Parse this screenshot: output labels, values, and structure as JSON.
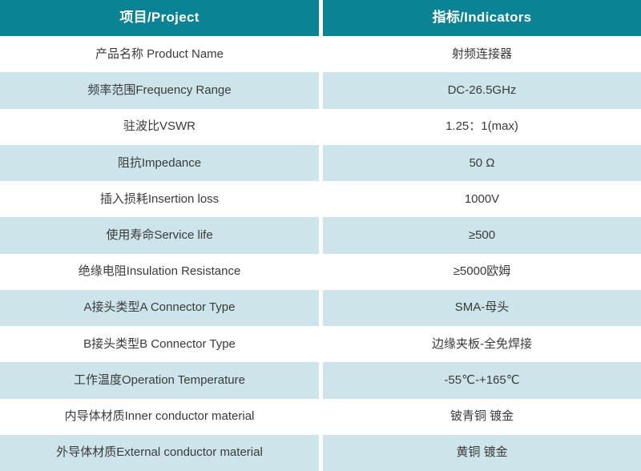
{
  "colors": {
    "header_bg": "#0A8494",
    "header_text": "#FFFFFF",
    "row_bg": "#FFFFFF",
    "row_alt_bg": "#CDE5EA",
    "body_text": "#3A3A3A"
  },
  "table": {
    "columns": [
      {
        "key": "project",
        "label": "项目/Project"
      },
      {
        "key": "indicator",
        "label": "指标/Indicators"
      }
    ],
    "rows": [
      {
        "project": "产品名称 Product Name",
        "indicator": "射频连接器"
      },
      {
        "project": "频率范围Frequency Range",
        "indicator": "DC-26.5GHz"
      },
      {
        "project": "驻波比VSWR",
        "indicator": "1.25：1(max)"
      },
      {
        "project": "阻抗Impedance",
        "indicator": "50 Ω"
      },
      {
        "project": "插入损耗Insertion loss",
        "indicator": "1000V"
      },
      {
        "project": "使用寿命Service life",
        "indicator": "≥500"
      },
      {
        "project": "绝缘电阻Insulation Resistance",
        "indicator": "≥5000欧姆"
      },
      {
        "project": "A接头类型A Connector Type",
        "indicator": "SMA-母头"
      },
      {
        "project": "B接头类型B Connector Type",
        "indicator": "边缘夹板-全免焊接"
      },
      {
        "project": "工作温度Operation Temperature",
        "indicator": "-55℃-+165℃"
      },
      {
        "project": "内导体材质Inner conductor material",
        "indicator": "铍青铜 镀金"
      },
      {
        "project": "外导体材质External conductor material",
        "indicator": "黄铜 镀金"
      }
    ]
  }
}
